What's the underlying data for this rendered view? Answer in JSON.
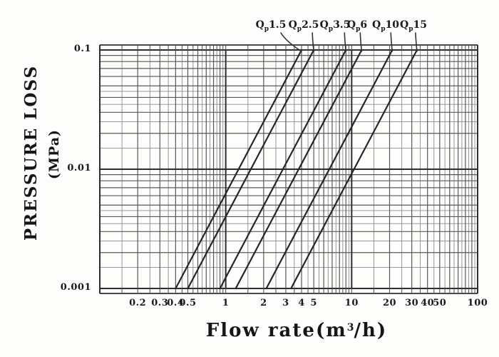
{
  "chart": {
    "y_axis": {
      "title": "PRESSURE LOSS",
      "unit": "(MPa)",
      "ticks": [
        {
          "label": "0.1",
          "value": 0.1
        },
        {
          "label": "0.01",
          "value": 0.01
        },
        {
          "label": "0.001",
          "value": 0.001
        }
      ]
    },
    "x_axis": {
      "title_prefix": "Flow rate(m",
      "title_sup": "3",
      "title_suffix": "/h)",
      "ticks": [
        {
          "label": "0.2",
          "value": 0.2
        },
        {
          "label": "0.3",
          "value": 0.3
        },
        {
          "label": "0.4",
          "value": 0.4
        },
        {
          "label": "0.5",
          "value": 0.5
        },
        {
          "label": "1",
          "value": 1
        },
        {
          "label": "2",
          "value": 2
        },
        {
          "label": "3",
          "value": 3
        },
        {
          "label": "4",
          "value": 4
        },
        {
          "label": "5",
          "value": 5
        },
        {
          "label": "10",
          "value": 10
        },
        {
          "label": "20",
          "value": 20
        },
        {
          "label": "30",
          "value": 30
        },
        {
          "label": "40",
          "value": 40
        },
        {
          "label": "50",
          "value": 50
        },
        {
          "label": "100",
          "value": 100
        }
      ]
    }
  },
  "chart_data": {
    "type": "line",
    "title": "",
    "xlabel": "Flow rate(m³/h)",
    "ylabel": "PRESSURE LOSS (MPa)",
    "x_scale": "log",
    "y_scale": "log",
    "xlim": [
      0.1,
      100
    ],
    "ylim": [
      0.001,
      0.1
    ],
    "grid": "dense log minor grid on",
    "legend_position": "labels above plot with leader lines",
    "x_tick_labels": [
      "0.2",
      "0.3",
      "0.4",
      "0.5",
      "1",
      "2",
      "3",
      "4",
      "5",
      "10",
      "20",
      "30",
      "40",
      "50",
      "100"
    ],
    "y_tick_labels": [
      "0.1",
      "0.01",
      "0.001"
    ],
    "series": [
      {
        "name": "Qp1.5",
        "label": {
          "sym": "Q",
          "sub": "p",
          "val": "1.5"
        },
        "points": [
          {
            "flow_m3h": 0.4,
            "pressure_loss_mpa": 0.001
          },
          {
            "flow_m3h": 4,
            "pressure_loss_mpa": 0.1
          }
        ]
      },
      {
        "name": "Qp2.5",
        "label": {
          "sym": "Q",
          "sub": "p",
          "val": "2.5"
        },
        "points": [
          {
            "flow_m3h": 0.5,
            "pressure_loss_mpa": 0.001
          },
          {
            "flow_m3h": 5,
            "pressure_loss_mpa": 0.1
          }
        ]
      },
      {
        "name": "Qp3.5",
        "label": {
          "sym": "Q",
          "sub": "p",
          "val": "3.5"
        },
        "points": [
          {
            "flow_m3h": 0.9,
            "pressure_loss_mpa": 0.001
          },
          {
            "flow_m3h": 9,
            "pressure_loss_mpa": 0.1
          }
        ]
      },
      {
        "name": "Qp6",
        "label": {
          "sym": "Q",
          "sub": "p",
          "val": "6"
        },
        "points": [
          {
            "flow_m3h": 1.2,
            "pressure_loss_mpa": 0.001
          },
          {
            "flow_m3h": 12,
            "pressure_loss_mpa": 0.1
          }
        ]
      },
      {
        "name": "Qp10",
        "label": {
          "sym": "Q",
          "sub": "p",
          "val": "10"
        },
        "points": [
          {
            "flow_m3h": 2.1,
            "pressure_loss_mpa": 0.001
          },
          {
            "flow_m3h": 21,
            "pressure_loss_mpa": 0.1
          }
        ]
      },
      {
        "name": "Qp15",
        "label": {
          "sym": "Q",
          "sub": "p",
          "val": "15"
        },
        "points": [
          {
            "flow_m3h": 3.3,
            "pressure_loss_mpa": 0.001
          },
          {
            "flow_m3h": 33,
            "pressure_loss_mpa": 0.1
          }
        ]
      }
    ]
  },
  "colors": {
    "background": "#fdfdfb",
    "grid_major": "#2e2e2e",
    "grid_minor": "#585858",
    "grid_half": "#8c8c8c",
    "series_line": "#262626",
    "leader_line": "#333333",
    "text": "#161616"
  }
}
